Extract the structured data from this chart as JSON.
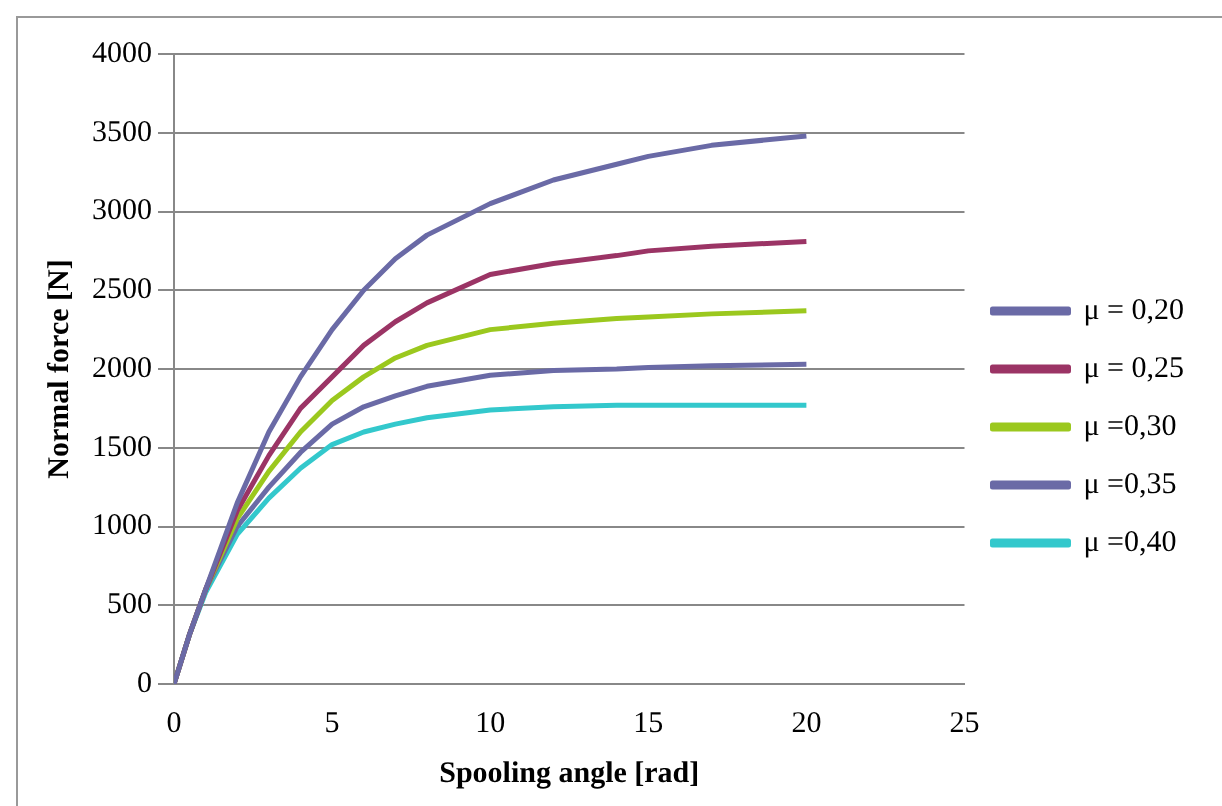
{
  "chart_data": {
    "type": "line",
    "xlabel": "Spooling angle [rad]",
    "ylabel": "Normal force [N]",
    "x": [
      0,
      0.5,
      1,
      2,
      3,
      4,
      5,
      6,
      7,
      8,
      10,
      12,
      14,
      15,
      17,
      20
    ],
    "series": [
      {
        "name": "μ = 0,20",
        "color": "#6a6aa6",
        "values": [
          0,
          320,
          600,
          1150,
          1600,
          1950,
          2250,
          2500,
          2700,
          2850,
          3050,
          3200,
          3300,
          3350,
          3420,
          3480
        ]
      },
      {
        "name": "μ = 0,25",
        "color": "#9b3465",
        "values": [
          0,
          320,
          600,
          1100,
          1450,
          1750,
          1950,
          2150,
          2300,
          2420,
          2600,
          2670,
          2720,
          2750,
          2780,
          2810
        ]
      },
      {
        "name": "μ =0,30",
        "color": "#9bc81e",
        "values": [
          0,
          320,
          600,
          1050,
          1350,
          1600,
          1800,
          1950,
          2070,
          2150,
          2250,
          2290,
          2320,
          2330,
          2350,
          2370
        ]
      },
      {
        "name": "μ =0,35",
        "color": "#6a6aa6",
        "values": [
          0,
          320,
          600,
          1000,
          1250,
          1470,
          1650,
          1760,
          1830,
          1890,
          1960,
          1990,
          2000,
          2010,
          2020,
          2030
        ]
      },
      {
        "name": "μ =0,40",
        "color": "#33c8cc",
        "values": [
          0,
          320,
          580,
          950,
          1180,
          1370,
          1520,
          1600,
          1650,
          1690,
          1740,
          1760,
          1770,
          1770,
          1770,
          1770
        ]
      }
    ],
    "xlim": [
      0,
      25
    ],
    "xticks": [
      0,
      5,
      10,
      15,
      20,
      25
    ],
    "ylim": [
      0,
      4000
    ],
    "yticks": [
      0,
      500,
      1000,
      1500,
      2000,
      2500,
      3000,
      3500,
      4000
    ],
    "grid": "y",
    "legend": "right",
    "marker": "none",
    "line_style": "solid"
  }
}
